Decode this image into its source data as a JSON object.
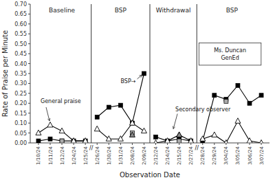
{
  "chart_data": {
    "type": "line",
    "xlabel": "Observation Date",
    "ylabel": "Rate of Praise per Minute",
    "categories": [
      "1/10/24",
      "1/11/24",
      "1/12/24",
      "1/24/24",
      "1/25/24",
      "1/26/24",
      "1/30/24",
      "1/31/24",
      "2/08/24",
      "2/09/24",
      "2/12/24",
      "2/14/24",
      "2/15/24",
      "2/27/24",
      "2/28/24",
      "2/29/24",
      "3/04/24",
      "3/05/24",
      "3/06/24",
      "3/07/24"
    ],
    "series": [
      {
        "color": "black",
        "marker": "square",
        "line_style": "solid",
        "values": [
          0.01,
          0.02,
          0.01,
          0.01,
          0.01,
          0.13,
          0.18,
          0.19,
          0.1,
          0.35,
          0.03,
          0.01,
          0.02,
          0.01,
          0.01,
          0.24,
          0.22,
          0.29,
          0.2,
          0.24
        ]
      },
      {
        "color": "black",
        "marker": "triangle-open",
        "line_style": "solid",
        "values": [
          0.05,
          0.09,
          0.06,
          0.01,
          0.01,
          0.07,
          0.02,
          0.02,
          0.1,
          0.06,
          0.0,
          0.01,
          0.04,
          0.01,
          0.02,
          0.04,
          0.0,
          0.11,
          0.01,
          0.0
        ]
      },
      {
        "type": "scatter",
        "color": "#aaaaaa",
        "marker": "square",
        "values": [
          null,
          null,
          0.01,
          null,
          null,
          null,
          null,
          null,
          0.05,
          null,
          null,
          null,
          0.01,
          null,
          null,
          null,
          0.21,
          null,
          null,
          null
        ]
      },
      {
        "type": "scatter",
        "color": "#888888",
        "marker": "triangle",
        "values": [
          null,
          null,
          null,
          null,
          null,
          null,
          null,
          null,
          0.04,
          null,
          null,
          null,
          0.04,
          null,
          null,
          null,
          null,
          null,
          null,
          null
        ]
      }
    ],
    "ylim": [
      0.0,
      0.7
    ],
    "yticks": [
      {
        "value": 0.0,
        "label": "0.00"
      },
      0.05,
      {
        "value": 0.1,
        "label": "0.10"
      },
      0.15,
      {
        "value": 0.2,
        "label": "0.20"
      },
      0.25,
      {
        "value": 0.3,
        "label": "0.30"
      },
      0.35,
      {
        "value": 0.4,
        "label": "0.40"
      },
      0.45,
      {
        "value": 0.5,
        "label": "0.50"
      },
      0.55,
      {
        "value": 0.6,
        "label": "0.60"
      },
      0.65,
      {
        "value": 0.7,
        "label": "0.70"
      }
    ],
    "grid": false,
    "phases": [
      "Baseline",
      "BSP",
      "Withdrawal",
      "BSP"
    ],
    "phase_dividers": [
      4.5,
      9.5,
      13.5
    ],
    "axis_breaks": {
      "label": "//",
      "x": [
        4.5,
        13.5
      ]
    },
    "annotations": [
      {
        "text": "General praise",
        "x": 1,
        "y": 0.09
      },
      {
        "text": "BSP→",
        "x": 9,
        "y": 0.35
      },
      {
        "text": "Secondary observer",
        "x": 11.5,
        "y": 0.05
      }
    ],
    "notes": [
      "Ms. Duncan",
      "GenEd"
    ]
  }
}
